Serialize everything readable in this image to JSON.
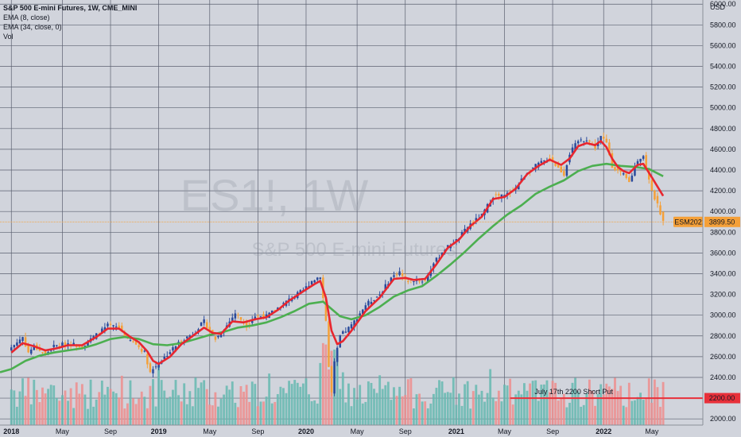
{
  "header": {
    "symbol_title": "S&P 500 E-mini Futures, 1W, CME_MINI",
    "study1": "EMA (8, close)",
    "study2": "EMA (34, close, 0)",
    "study3": "Vol"
  },
  "watermark": {
    "main": "ES1!, 1W",
    "sub": "S&P 500 E-mini Futures"
  },
  "colors": {
    "up": "#2a4a9b",
    "down": "#f5a038",
    "ema_fast": "#e8262f",
    "ema_slow": "#4caf50",
    "vol_up": "#66b8b0",
    "vol_down": "#ee8d8d",
    "grid": "#5b6070",
    "hline": "#e8303a",
    "last_price_bg": "#f5a038",
    "hline_label_bg": "#e8303a"
  },
  "chart_data": {
    "type": "candlestick",
    "currency": "USD",
    "y_ticks": [
      2000,
      2200,
      2400,
      2600,
      2800,
      3000,
      3200,
      3400,
      3600,
      3800,
      4000,
      4200,
      4400,
      4600,
      4800,
      5000,
      5200,
      5400,
      5600,
      5800,
      6000
    ],
    "y_tick_labels": [
      "2000.00",
      "2200.00",
      "2400.00",
      "2600.00",
      "2800.00",
      "3000.00",
      "3200.00",
      "3400.00",
      "3600.00",
      "3800.00",
      "4000.00",
      "4200.00",
      "4400.00",
      "4600.00",
      "4800.00",
      "5000.00",
      "5200.00",
      "5400.00",
      "5600.00",
      "5800.00",
      "6000.00"
    ],
    "ylim": [
      1940,
      6040
    ],
    "x_ticks": [
      {
        "label": "2018",
        "week": 0
      },
      {
        "label": "May",
        "week": 18
      },
      {
        "label": "Sep",
        "week": 35
      },
      {
        "label": "2019",
        "week": 52
      },
      {
        "label": "May",
        "week": 70
      },
      {
        "label": "Sep",
        "week": 87
      },
      {
        "label": "2020",
        "week": 104
      },
      {
        "label": "May",
        "week": 122
      },
      {
        "label": "Sep",
        "week": 139
      },
      {
        "label": "2021",
        "week": 157
      },
      {
        "label": "May",
        "week": 174
      },
      {
        "label": "Sep",
        "week": 191
      },
      {
        "label": "2022",
        "week": 209
      },
      {
        "label": "May",
        "week": 226
      }
    ],
    "week_range": [
      -4,
      244
    ],
    "close_anchors": [
      [
        0,
        2690
      ],
      [
        4,
        2790
      ],
      [
        6,
        2640
      ],
      [
        8,
        2700
      ],
      [
        12,
        2620
      ],
      [
        15,
        2700
      ],
      [
        20,
        2730
      ],
      [
        25,
        2700
      ],
      [
        30,
        2810
      ],
      [
        34,
        2900
      ],
      [
        38,
        2880
      ],
      [
        41,
        2770
      ],
      [
        44,
        2720
      ],
      [
        47,
        2640
      ],
      [
        49,
        2450
      ],
      [
        51,
        2510
      ],
      [
        56,
        2650
      ],
      [
        60,
        2760
      ],
      [
        64,
        2820
      ],
      [
        68,
        2940
      ],
      [
        70,
        2850
      ],
      [
        72,
        2770
      ],
      [
        76,
        2900
      ],
      [
        79,
        3020
      ],
      [
        83,
        2900
      ],
      [
        86,
        2990
      ],
      [
        90,
        2990
      ],
      [
        94,
        3070
      ],
      [
        98,
        3150
      ],
      [
        103,
        3240
      ],
      [
        106,
        3330
      ],
      [
        109,
        3380
      ],
      [
        111,
        2950
      ],
      [
        112,
        2500
      ],
      [
        113,
        2250
      ],
      [
        114,
        2540
      ],
      [
        116,
        2800
      ],
      [
        120,
        2900
      ],
      [
        125,
        3100
      ],
      [
        130,
        3200
      ],
      [
        134,
        3360
      ],
      [
        137,
        3420
      ],
      [
        139,
        3330
      ],
      [
        142,
        3340
      ],
      [
        146,
        3330
      ],
      [
        149,
        3500
      ],
      [
        153,
        3640
      ],
      [
        157,
        3720
      ],
      [
        162,
        3880
      ],
      [
        166,
        3960
      ],
      [
        170,
        4150
      ],
      [
        174,
        4150
      ],
      [
        178,
        4230
      ],
      [
        182,
        4380
      ],
      [
        186,
        4460
      ],
      [
        190,
        4510
      ],
      [
        193,
        4420
      ],
      [
        195,
        4360
      ],
      [
        197,
        4560
      ],
      [
        200,
        4680
      ],
      [
        203,
        4700
      ],
      [
        206,
        4620
      ],
      [
        208,
        4720
      ],
      [
        210,
        4660
      ],
      [
        212,
        4440
      ],
      [
        214,
        4390
      ],
      [
        216,
        4350
      ],
      [
        218,
        4280
      ],
      [
        221,
        4500
      ],
      [
        223,
        4540
      ],
      [
        225,
        4300
      ],
      [
        227,
        4130
      ],
      [
        229,
        3990
      ],
      [
        230,
        3899.5
      ]
    ],
    "ema_fast_anchors": [
      [
        0,
        2640
      ],
      [
        4,
        2730
      ],
      [
        8,
        2700
      ],
      [
        12,
        2660
      ],
      [
        16,
        2680
      ],
      [
        20,
        2710
      ],
      [
        25,
        2710
      ],
      [
        30,
        2790
      ],
      [
        34,
        2870
      ],
      [
        38,
        2870
      ],
      [
        42,
        2790
      ],
      [
        45,
        2740
      ],
      [
        48,
        2650
      ],
      [
        50,
        2560
      ],
      [
        52,
        2530
      ],
      [
        56,
        2600
      ],
      [
        60,
        2720
      ],
      [
        64,
        2800
      ],
      [
        68,
        2880
      ],
      [
        71,
        2830
      ],
      [
        74,
        2820
      ],
      [
        78,
        2940
      ],
      [
        82,
        2930
      ],
      [
        86,
        2960
      ],
      [
        90,
        2980
      ],
      [
        94,
        3050
      ],
      [
        98,
        3140
      ],
      [
        103,
        3230
      ],
      [
        107,
        3300
      ],
      [
        109,
        3330
      ],
      [
        111,
        3170
      ],
      [
        113,
        2850
      ],
      [
        115,
        2720
      ],
      [
        117,
        2750
      ],
      [
        120,
        2850
      ],
      [
        125,
        3040
      ],
      [
        130,
        3170
      ],
      [
        135,
        3350
      ],
      [
        139,
        3360
      ],
      [
        142,
        3340
      ],
      [
        146,
        3350
      ],
      [
        150,
        3490
      ],
      [
        154,
        3650
      ],
      [
        158,
        3730
      ],
      [
        162,
        3860
      ],
      [
        166,
        3950
      ],
      [
        170,
        4120
      ],
      [
        174,
        4140
      ],
      [
        178,
        4220
      ],
      [
        182,
        4360
      ],
      [
        186,
        4440
      ],
      [
        190,
        4500
      ],
      [
        194,
        4450
      ],
      [
        197,
        4510
      ],
      [
        200,
        4630
      ],
      [
        203,
        4660
      ],
      [
        206,
        4640
      ],
      [
        208,
        4680
      ],
      [
        210,
        4620
      ],
      [
        212,
        4510
      ],
      [
        214,
        4430
      ],
      [
        216,
        4390
      ],
      [
        218,
        4370
      ],
      [
        221,
        4450
      ],
      [
        223,
        4460
      ],
      [
        226,
        4330
      ],
      [
        228,
        4240
      ],
      [
        230,
        4150
      ]
    ],
    "ema_slow_anchors": [
      [
        -4,
        2450
      ],
      [
        0,
        2480
      ],
      [
        5,
        2560
      ],
      [
        10,
        2610
      ],
      [
        15,
        2640
      ],
      [
        20,
        2660
      ],
      [
        25,
        2680
      ],
      [
        30,
        2720
      ],
      [
        35,
        2770
      ],
      [
        40,
        2790
      ],
      [
        45,
        2770
      ],
      [
        50,
        2720
      ],
      [
        55,
        2710
      ],
      [
        60,
        2730
      ],
      [
        65,
        2770
      ],
      [
        70,
        2810
      ],
      [
        75,
        2840
      ],
      [
        80,
        2880
      ],
      [
        85,
        2900
      ],
      [
        90,
        2930
      ],
      [
        95,
        2980
      ],
      [
        100,
        3040
      ],
      [
        105,
        3110
      ],
      [
        110,
        3130
      ],
      [
        113,
        3060
      ],
      [
        116,
        2990
      ],
      [
        120,
        2960
      ],
      [
        125,
        3000
      ],
      [
        130,
        3080
      ],
      [
        135,
        3180
      ],
      [
        140,
        3240
      ],
      [
        145,
        3280
      ],
      [
        150,
        3380
      ],
      [
        155,
        3490
      ],
      [
        160,
        3610
      ],
      [
        165,
        3740
      ],
      [
        170,
        3860
      ],
      [
        175,
        3970
      ],
      [
        180,
        4060
      ],
      [
        185,
        4170
      ],
      [
        190,
        4240
      ],
      [
        195,
        4300
      ],
      [
        200,
        4390
      ],
      [
        205,
        4440
      ],
      [
        210,
        4460
      ],
      [
        215,
        4440
      ],
      [
        220,
        4430
      ],
      [
        225,
        4410
      ],
      [
        230,
        4340
      ]
    ],
    "last_price": {
      "label": "ESM2022",
      "value": "3899.50",
      "y": 3899.5
    },
    "horizontal_line": {
      "y": 2200,
      "label": "2200.00",
      "annotation": "July 17th 2200 Short Put",
      "start_week": 176
    }
  }
}
